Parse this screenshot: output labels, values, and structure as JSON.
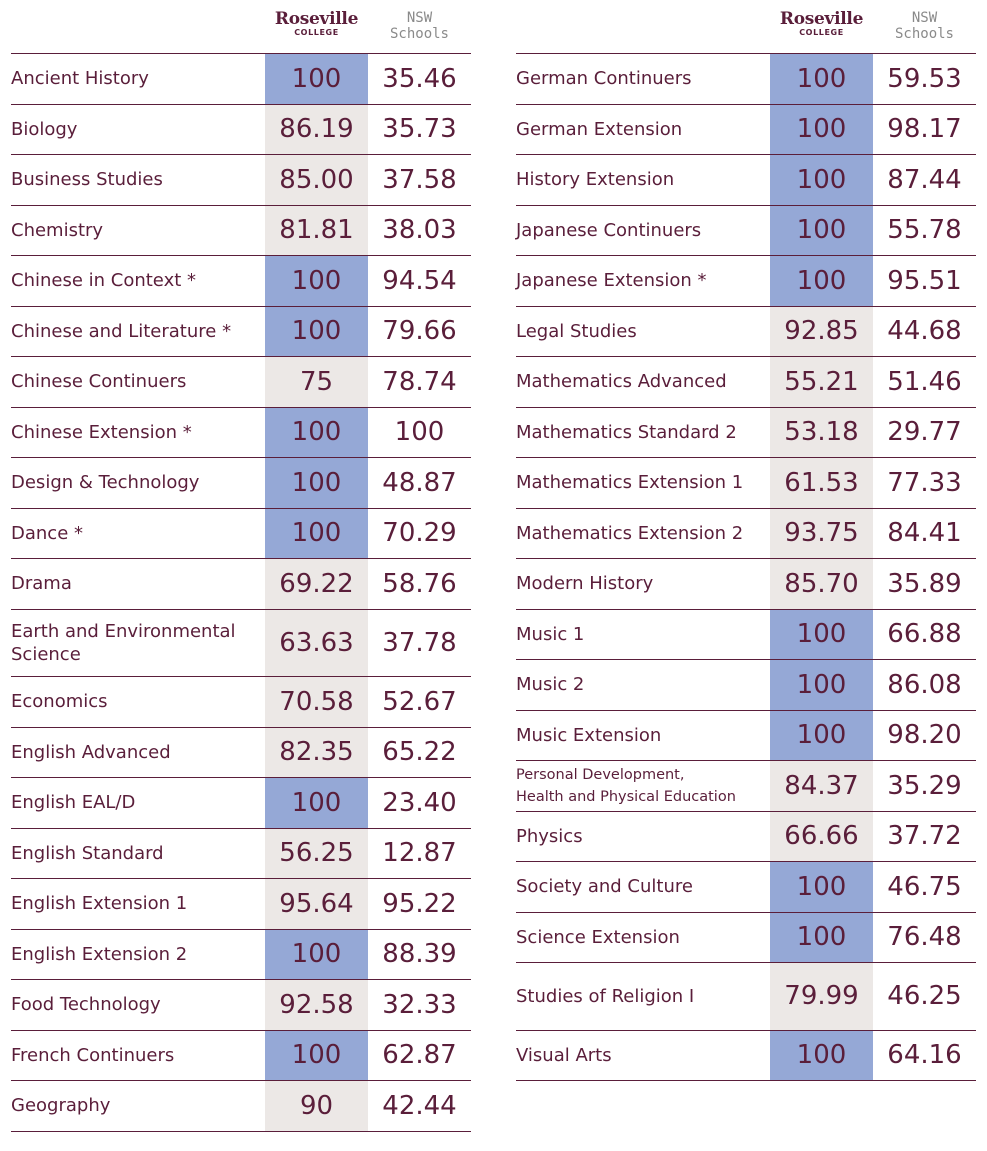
{
  "header": {
    "college_name": "Roseville",
    "college_sub": "COLLEGE",
    "nsw_line1": "NSW",
    "nsw_line2": "Schools"
  },
  "colors": {
    "highlight": "#95a8d6",
    "regular": "#ece8e6",
    "text": "#5a1e3a",
    "muted": "#8a8a8a"
  },
  "left_table": [
    {
      "subject": "Ancient History",
      "college": "100",
      "nsw": "35.46",
      "top": true
    },
    {
      "subject": "Biology",
      "college": "86.19",
      "nsw": "35.73",
      "top": false
    },
    {
      "subject": "Business Studies",
      "college": "85.00",
      "nsw": "37.58",
      "top": false
    },
    {
      "subject": "Chemistry",
      "college": "81.81",
      "nsw": "38.03",
      "top": false
    },
    {
      "subject": "Chinese in Context *",
      "college": "100",
      "nsw": "94.54",
      "top": true
    },
    {
      "subject": "Chinese and Literature *",
      "college": "100",
      "nsw": "79.66",
      "top": true
    },
    {
      "subject": "Chinese Continuers",
      "college": "75",
      "nsw": "78.74",
      "top": false
    },
    {
      "subject": "Chinese Extension *",
      "college": "100",
      "nsw": "100",
      "top": true
    },
    {
      "subject": "Design & Technology",
      "college": "100",
      "nsw": "48.87",
      "top": true
    },
    {
      "subject": "Dance *",
      "college": "100",
      "nsw": "70.29",
      "top": true
    },
    {
      "subject": "Drama",
      "college": "69.22",
      "nsw": "58.76",
      "top": false
    },
    {
      "subject": "Earth and Environmental Science",
      "college": "63.63",
      "nsw": "37.78",
      "top": false
    },
    {
      "subject": "Economics",
      "college": "70.58",
      "nsw": "52.67",
      "top": false
    },
    {
      "subject": "English Advanced",
      "college": "82.35",
      "nsw": "65.22",
      "top": false
    },
    {
      "subject": "English EAL/D",
      "college": "100",
      "nsw": "23.40",
      "top": true
    },
    {
      "subject": "English Standard",
      "college": "56.25",
      "nsw": "12.87",
      "top": false
    },
    {
      "subject": "English Extension 1",
      "college": "95.64",
      "nsw": "95.22",
      "top": false
    },
    {
      "subject": "English Extension 2",
      "college": "100",
      "nsw": "88.39",
      "top": true
    },
    {
      "subject": "Food Technology",
      "college": "92.58",
      "nsw": "32.33",
      "top": false
    },
    {
      "subject": "French Continuers",
      "college": "100",
      "nsw": "62.87",
      "top": true
    },
    {
      "subject": "Geography",
      "college": "90",
      "nsw": "42.44",
      "top": false
    }
  ],
  "right_table": [
    {
      "subject": "German Continuers",
      "college": "100",
      "nsw": "59.53",
      "top": true
    },
    {
      "subject": "German Extension",
      "college": "100",
      "nsw": "98.17",
      "top": true
    },
    {
      "subject": "History Extension",
      "college": "100",
      "nsw": "87.44",
      "top": true
    },
    {
      "subject": "Japanese Continuers",
      "college": "100",
      "nsw": "55.78",
      "top": true
    },
    {
      "subject": "Japanese Extension *",
      "college": "100",
      "nsw": "95.51",
      "top": true
    },
    {
      "subject": "Legal Studies",
      "college": "92.85",
      "nsw": "44.68",
      "top": false
    },
    {
      "subject": "Mathematics Advanced",
      "college": "55.21",
      "nsw": "51.46",
      "top": false
    },
    {
      "subject": "Mathematics Standard 2",
      "college": "53.18",
      "nsw": "29.77",
      "top": false
    },
    {
      "subject": "Mathematics Extension 1",
      "college": "61.53",
      "nsw": "77.33",
      "top": false
    },
    {
      "subject": "Mathematics Extension 2",
      "college": "93.75",
      "nsw": "84.41",
      "top": false
    },
    {
      "subject": "Modern History",
      "college": "85.70",
      "nsw": "35.89",
      "top": false
    },
    {
      "subject": "Music 1",
      "college": "100",
      "nsw": "66.88",
      "top": true
    },
    {
      "subject": "Music 2",
      "college": "100",
      "nsw": "86.08",
      "top": true
    },
    {
      "subject": "Music Extension",
      "college": "100",
      "nsw": "98.20",
      "top": true
    },
    {
      "subject": "Personal Development,\nHealth and Physical Education",
      "college": "84.37",
      "nsw": "35.29",
      "top": false
    },
    {
      "subject": "Physics",
      "college": "66.66",
      "nsw": "37.72",
      "top": false
    },
    {
      "subject": "Society and Culture",
      "college": "100",
      "nsw": "46.75",
      "top": true
    },
    {
      "subject": "Science Extension",
      "college": "100",
      "nsw": "76.48",
      "top": true
    },
    {
      "subject": "Studies of Religion I",
      "college": "79.99",
      "nsw": "46.25",
      "top": false
    },
    {
      "subject": "Visual Arts",
      "college": "100",
      "nsw": "64.16",
      "top": true
    }
  ]
}
